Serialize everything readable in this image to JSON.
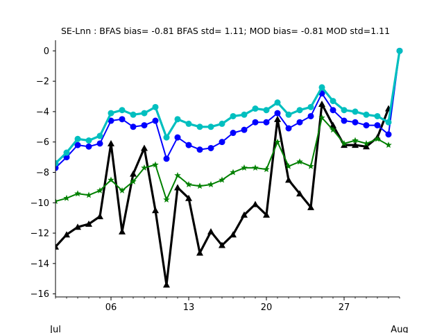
{
  "chart_data": {
    "type": "line",
    "title": "SE-Lnn   : BFAS bias= -0.81 BFAS std= 1.11; MOD bias= -0.81 MOD std=1.11",
    "xlabel": "",
    "ylabel": "",
    "xlim": [
      1,
      32
    ],
    "ylim": [
      -16.2,
      0.7
    ],
    "yticks": [
      0,
      -2,
      -4,
      -6,
      -8,
      -10,
      -12,
      -14,
      -16
    ],
    "xticks": [
      {
        "x": 6,
        "label": "06"
      },
      {
        "x": 13,
        "label": "13"
      },
      {
        "x": 20,
        "label": "20"
      },
      {
        "x": 27,
        "label": "27"
      }
    ],
    "xticks_minor": [
      1,
      2,
      3,
      4,
      5,
      7,
      8,
      9,
      10,
      11,
      12,
      14,
      15,
      16,
      17,
      18,
      19,
      21,
      22,
      23,
      24,
      25,
      26,
      28,
      29,
      30,
      31,
      32
    ],
    "month_labels": [
      {
        "x": 1,
        "label": "Jul"
      },
      {
        "x": 32,
        "label": "Aug"
      }
    ],
    "grid": false,
    "legend": "none",
    "series": [
      {
        "color": "#000000",
        "marker": "triangle",
        "width": 3.2,
        "x": [
          1,
          2,
          3,
          4,
          5,
          6,
          7,
          8,
          9,
          10,
          11,
          12,
          13,
          14,
          15,
          16,
          17,
          18,
          19,
          20,
          21,
          22,
          23,
          24,
          25,
          26,
          27,
          28,
          29,
          30,
          31
        ],
        "y": [
          -12.9,
          -12.1,
          -11.6,
          -11.4,
          -10.9,
          -6.1,
          -11.9,
          -8.1,
          -6.4,
          -10.5,
          -15.4,
          -9.0,
          -9.7,
          -13.3,
          -11.9,
          -12.8,
          -12.1,
          -10.8,
          -10.1,
          -10.8,
          -4.5,
          -8.5,
          -9.4,
          -10.3,
          -3.5,
          -4.9,
          -6.2,
          -6.2,
          -6.3,
          -5.7,
          -3.8
        ]
      },
      {
        "color": "#008000",
        "marker": "star",
        "width": 2,
        "x": [
          1,
          2,
          3,
          4,
          5,
          6,
          7,
          8,
          9,
          10,
          11,
          12,
          13,
          14,
          15,
          16,
          17,
          18,
          19,
          20,
          21,
          22,
          23,
          24,
          25,
          26,
          27,
          28,
          29,
          30,
          31
        ],
        "y": [
          -9.9,
          -9.7,
          -9.4,
          -9.5,
          -9.2,
          -8.5,
          -9.2,
          -8.6,
          -7.7,
          -7.5,
          -9.8,
          -8.2,
          -8.8,
          -8.9,
          -8.8,
          -8.5,
          -8.0,
          -7.7,
          -7.7,
          -7.8,
          -6.0,
          -7.6,
          -7.3,
          -7.6,
          -4.4,
          -5.2,
          -6.1,
          -5.9,
          -6.1,
          -5.8,
          -6.2
        ]
      },
      {
        "color": "#0000ff",
        "marker": "circle",
        "width": 2,
        "x": [
          1,
          2,
          3,
          4,
          5,
          6,
          7,
          8,
          9,
          10,
          11,
          12,
          13,
          14,
          15,
          16,
          17,
          18,
          19,
          20,
          21,
          22,
          23,
          24,
          25,
          26,
          27,
          28,
          29,
          30,
          31,
          32
        ],
        "y": [
          -7.7,
          -7.0,
          -6.2,
          -6.3,
          -6.1,
          -4.6,
          -4.5,
          -5.0,
          -4.9,
          -4.6,
          -7.1,
          -5.7,
          -6.2,
          -6.5,
          -6.4,
          -6.0,
          -5.4,
          -5.2,
          -4.7,
          -4.7,
          -4.1,
          -5.1,
          -4.7,
          -4.3,
          -2.8,
          -3.9,
          -4.6,
          -4.7,
          -4.9,
          -4.9,
          -5.5,
          0.0
        ]
      },
      {
        "color": "#00bfbf",
        "marker": "circle",
        "width": 3.2,
        "x": [
          1,
          2,
          3,
          4,
          5,
          6,
          7,
          8,
          9,
          10,
          11,
          12,
          13,
          14,
          15,
          16,
          17,
          18,
          19,
          20,
          21,
          22,
          23,
          24,
          25,
          26,
          27,
          28,
          29,
          30,
          31,
          32
        ],
        "y": [
          -7.4,
          -6.7,
          -5.8,
          -5.9,
          -5.6,
          -4.1,
          -3.9,
          -4.2,
          -4.1,
          -3.7,
          -5.7,
          -4.5,
          -4.8,
          -5.0,
          -5.0,
          -4.8,
          -4.3,
          -4.2,
          -3.8,
          -3.9,
          -3.4,
          -4.2,
          -3.9,
          -3.7,
          -2.4,
          -3.3,
          -3.9,
          -4.0,
          -4.2,
          -4.3,
          -4.7,
          0.0
        ]
      }
    ]
  }
}
